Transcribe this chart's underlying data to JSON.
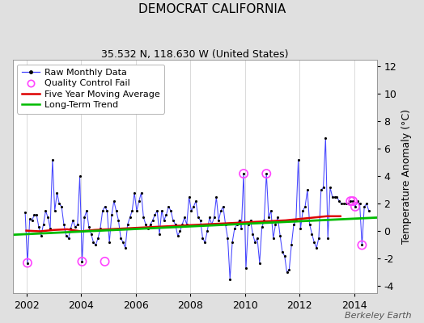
{
  "title": "DEMOCRAT CALIFORNIA",
  "subtitle": "35.532 N, 118.630 W (United States)",
  "ylabel_right": "Temperature Anomaly (°C)",
  "watermark": "Berkeley Earth",
  "xlim": [
    2001.5,
    2014.83
  ],
  "ylim": [
    -4.5,
    12.5
  ],
  "yticks": [
    -4,
    -2,
    0,
    2,
    4,
    6,
    8,
    10,
    12
  ],
  "xticks": [
    2002,
    2004,
    2006,
    2008,
    2010,
    2012,
    2014
  ],
  "bg_color": "#e0e0e0",
  "plot_bg_color": "#ffffff",
  "raw_data": [
    [
      2001.958,
      1.4
    ],
    [
      2002.042,
      -2.3
    ],
    [
      2002.125,
      0.9
    ],
    [
      2002.208,
      0.8
    ],
    [
      2002.292,
      1.2
    ],
    [
      2002.375,
      1.2
    ],
    [
      2002.458,
      0.3
    ],
    [
      2002.542,
      -0.3
    ],
    [
      2002.625,
      0.5
    ],
    [
      2002.708,
      1.5
    ],
    [
      2002.792,
      1.0
    ],
    [
      2002.875,
      0.2
    ],
    [
      2002.958,
      5.2
    ],
    [
      2003.042,
      1.5
    ],
    [
      2003.125,
      2.8
    ],
    [
      2003.208,
      2.0
    ],
    [
      2003.292,
      1.8
    ],
    [
      2003.375,
      0.5
    ],
    [
      2003.458,
      -0.3
    ],
    [
      2003.542,
      -0.5
    ],
    [
      2003.625,
      0.2
    ],
    [
      2003.708,
      0.8
    ],
    [
      2003.792,
      0.3
    ],
    [
      2003.875,
      0.5
    ],
    [
      2003.958,
      4.0
    ],
    [
      2004.042,
      -2.2
    ],
    [
      2004.125,
      1.0
    ],
    [
      2004.208,
      1.5
    ],
    [
      2004.292,
      0.3
    ],
    [
      2004.375,
      -0.2
    ],
    [
      2004.458,
      -0.8
    ],
    [
      2004.542,
      -1.0
    ],
    [
      2004.625,
      -0.5
    ],
    [
      2004.708,
      0.2
    ],
    [
      2004.792,
      1.5
    ],
    [
      2004.875,
      1.8
    ],
    [
      2004.958,
      1.5
    ],
    [
      2005.042,
      -0.8
    ],
    [
      2005.125,
      1.2
    ],
    [
      2005.208,
      2.2
    ],
    [
      2005.292,
      1.5
    ],
    [
      2005.375,
      0.8
    ],
    [
      2005.458,
      -0.5
    ],
    [
      2005.542,
      -0.8
    ],
    [
      2005.625,
      -1.2
    ],
    [
      2005.708,
      0.5
    ],
    [
      2005.792,
      1.0
    ],
    [
      2005.875,
      1.5
    ],
    [
      2005.958,
      2.8
    ],
    [
      2006.042,
      1.5
    ],
    [
      2006.125,
      2.2
    ],
    [
      2006.208,
      2.8
    ],
    [
      2006.292,
      1.0
    ],
    [
      2006.375,
      0.5
    ],
    [
      2006.458,
      0.2
    ],
    [
      2006.542,
      0.5
    ],
    [
      2006.625,
      0.8
    ],
    [
      2006.708,
      1.2
    ],
    [
      2006.792,
      1.5
    ],
    [
      2006.875,
      -0.2
    ],
    [
      2006.958,
      1.5
    ],
    [
      2007.042,
      0.8
    ],
    [
      2007.125,
      1.2
    ],
    [
      2007.208,
      1.8
    ],
    [
      2007.292,
      1.5
    ],
    [
      2007.375,
      0.8
    ],
    [
      2007.458,
      0.5
    ],
    [
      2007.542,
      -0.3
    ],
    [
      2007.625,
      0.0
    ],
    [
      2007.708,
      0.5
    ],
    [
      2007.792,
      1.0
    ],
    [
      2007.875,
      0.5
    ],
    [
      2007.958,
      2.5
    ],
    [
      2008.042,
      1.5
    ],
    [
      2008.125,
      1.8
    ],
    [
      2008.208,
      2.2
    ],
    [
      2008.292,
      1.0
    ],
    [
      2008.375,
      0.8
    ],
    [
      2008.458,
      -0.5
    ],
    [
      2008.542,
      -0.8
    ],
    [
      2008.625,
      0.0
    ],
    [
      2008.708,
      1.0
    ],
    [
      2008.792,
      0.5
    ],
    [
      2008.875,
      1.0
    ],
    [
      2008.958,
      2.5
    ],
    [
      2009.042,
      0.8
    ],
    [
      2009.125,
      1.5
    ],
    [
      2009.208,
      1.8
    ],
    [
      2009.292,
      0.5
    ],
    [
      2009.375,
      -0.5
    ],
    [
      2009.458,
      -3.5
    ],
    [
      2009.542,
      -0.8
    ],
    [
      2009.625,
      0.2
    ],
    [
      2009.708,
      0.5
    ],
    [
      2009.792,
      0.8
    ],
    [
      2009.875,
      0.2
    ],
    [
      2009.958,
      4.2
    ],
    [
      2010.042,
      -2.7
    ],
    [
      2010.125,
      0.5
    ],
    [
      2010.208,
      0.8
    ],
    [
      2010.292,
      -0.2
    ],
    [
      2010.375,
      -0.8
    ],
    [
      2010.458,
      -0.5
    ],
    [
      2010.542,
      -2.3
    ],
    [
      2010.625,
      0.3
    ],
    [
      2010.708,
      0.8
    ],
    [
      2010.792,
      4.2
    ],
    [
      2010.875,
      1.0
    ],
    [
      2010.958,
      1.5
    ],
    [
      2011.042,
      -0.5
    ],
    [
      2011.125,
      0.5
    ],
    [
      2011.208,
      1.0
    ],
    [
      2011.292,
      -0.3
    ],
    [
      2011.375,
      -1.5
    ],
    [
      2011.458,
      -1.8
    ],
    [
      2011.542,
      -3.0
    ],
    [
      2011.625,
      -2.8
    ],
    [
      2011.708,
      -1.0
    ],
    [
      2011.792,
      0.5
    ],
    [
      2011.875,
      0.8
    ],
    [
      2011.958,
      5.2
    ],
    [
      2012.042,
      0.2
    ],
    [
      2012.125,
      1.5
    ],
    [
      2012.208,
      1.8
    ],
    [
      2012.292,
      3.0
    ],
    [
      2012.375,
      0.5
    ],
    [
      2012.458,
      -0.2
    ],
    [
      2012.542,
      -0.8
    ],
    [
      2012.625,
      -1.2
    ],
    [
      2012.708,
      -0.5
    ],
    [
      2012.792,
      3.0
    ],
    [
      2012.875,
      3.2
    ],
    [
      2012.958,
      6.8
    ],
    [
      2013.042,
      -0.5
    ],
    [
      2013.125,
      3.2
    ],
    [
      2013.208,
      2.5
    ],
    [
      2013.292,
      2.5
    ],
    [
      2013.375,
      2.5
    ],
    [
      2013.458,
      2.2
    ],
    [
      2013.542,
      2.0
    ],
    [
      2013.625,
      2.0
    ],
    [
      2013.708,
      2.0
    ],
    [
      2013.792,
      2.0
    ],
    [
      2013.875,
      2.2
    ],
    [
      2013.958,
      2.2
    ],
    [
      2014.042,
      1.8
    ],
    [
      2014.125,
      2.2
    ],
    [
      2014.208,
      2.0
    ],
    [
      2014.292,
      -1.0
    ],
    [
      2014.375,
      1.8
    ],
    [
      2014.458,
      2.0
    ],
    [
      2014.542,
      1.5
    ]
  ],
  "qc_fail": [
    [
      2002.042,
      -2.3
    ],
    [
      2004.042,
      -2.2
    ],
    [
      2004.875,
      -2.2
    ],
    [
      2009.958,
      4.2
    ],
    [
      2010.792,
      4.2
    ],
    [
      2013.875,
      2.2
    ],
    [
      2013.958,
      2.2
    ],
    [
      2014.042,
      1.8
    ],
    [
      2014.292,
      -1.0
    ]
  ],
  "moving_avg": [
    [
      2002.0,
      0.05
    ],
    [
      2002.5,
      0.0
    ],
    [
      2003.0,
      0.1
    ],
    [
      2003.5,
      0.15
    ],
    [
      2004.0,
      0.0
    ],
    [
      2004.5,
      0.1
    ],
    [
      2005.0,
      0.15
    ],
    [
      2005.5,
      0.2
    ],
    [
      2006.0,
      0.25
    ],
    [
      2006.5,
      0.3
    ],
    [
      2007.0,
      0.35
    ],
    [
      2007.5,
      0.4
    ],
    [
      2008.0,
      0.45
    ],
    [
      2008.5,
      0.5
    ],
    [
      2009.0,
      0.55
    ],
    [
      2009.5,
      0.6
    ],
    [
      2010.0,
      0.65
    ],
    [
      2010.5,
      0.7
    ],
    [
      2011.0,
      0.75
    ],
    [
      2011.5,
      0.8
    ],
    [
      2012.0,
      0.9
    ],
    [
      2012.5,
      1.0
    ],
    [
      2013.0,
      1.1
    ],
    [
      2013.5,
      1.1
    ]
  ],
  "trend_x": [
    2001.5,
    2014.83
  ],
  "trend_y": [
    -0.25,
    1.0
  ],
  "line_color": "#4444ff",
  "dot_color": "#000000",
  "qc_color": "#ff44ff",
  "mavg_color": "#dd0000",
  "trend_color": "#00bb00",
  "grid_color": "#cccccc",
  "title_fontsize": 11,
  "subtitle_fontsize": 9,
  "tick_fontsize": 9,
  "legend_fontsize": 8,
  "watermark_fontsize": 8
}
